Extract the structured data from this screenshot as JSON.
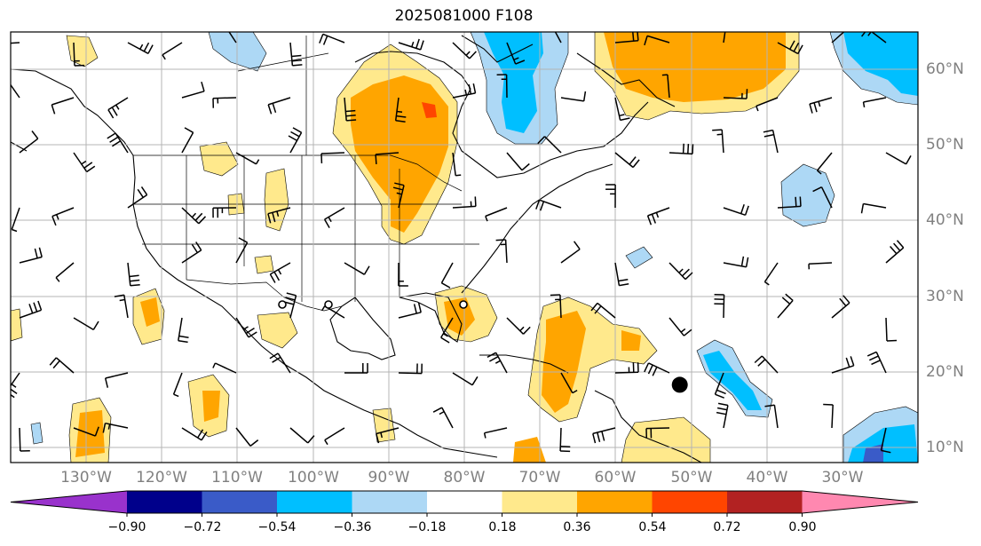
{
  "title": "2025081000 F108",
  "map": {
    "extent": {
      "lon": [
        -138,
        -18
      ],
      "lat": [
        8,
        65
      ]
    },
    "lat_labels": [
      "60°N",
      "50°N",
      "40°N",
      "30°N",
      "20°N",
      "10°N"
    ],
    "lon_labels": [
      "130°W",
      "120°W",
      "110°W",
      "100°W",
      "90°W",
      "80°W",
      "70°W",
      "60°W",
      "50°W",
      "40°W",
      "30°W"
    ],
    "gridlines": true,
    "marker": {
      "lon": -49.5,
      "lat": 18.3
    }
  },
  "colorbar": {
    "levels": [
      "−0.90",
      "−0.72",
      "−0.54",
      "−0.36",
      "−0.18",
      "0.18",
      "0.36",
      "0.54",
      "0.72",
      "0.90"
    ],
    "colors": [
      "#9932cc",
      "#00008b",
      "#3a5bc8",
      "#00bfff",
      "#add8f5",
      "#ffffff",
      "#ffe98c",
      "#ffa500",
      "#ff4500",
      "#b22222",
      "#ff88b0"
    ]
  }
}
